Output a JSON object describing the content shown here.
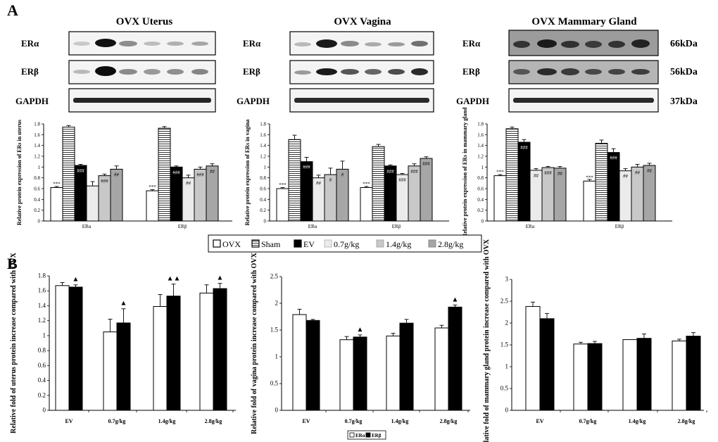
{
  "panel_labels": [
    "A",
    "B"
  ],
  "blots": [
    {
      "title": "OVX Uterus",
      "labels": [
        "ERα",
        "ERβ",
        "GAPDH"
      ]
    },
    {
      "title": "OVX Vagina",
      "labels": [
        "ERα",
        "ERβ",
        "GAPDH"
      ]
    },
    {
      "title": "OVX Mammary Gland",
      "labels": [
        "ERα",
        "ERβ",
        "GAPDH"
      ]
    }
  ],
  "kda_labels": [
    "66kDa",
    "56kDa",
    "37kDa"
  ],
  "legend_A": [
    "OVX",
    "Sham",
    "EV",
    "0.7g/kg",
    "1.4g/kg",
    "2.8g/kg"
  ],
  "legend_B": [
    "ERα",
    "ERβ"
  ],
  "colors": {
    "OVX": "#ffffff",
    "Sham": "#ffffff",
    "EV": "#000000",
    "0.7g/kg": "#ebebeb",
    "1.4g/kg": "#c8c8c8",
    "2.8g/kg": "#a6a6a6",
    "ERa": "#ffffff",
    "ERb": "#000000"
  },
  "chart_data": [
    {
      "type": "bar",
      "panel": "A",
      "ylabel": "Relative protein expression of ERs in uterus",
      "ylim": [
        0,
        1.8
      ],
      "yticks": [
        "0",
        "0.2",
        "0.4",
        "0.6",
        "0.8",
        "1",
        "1.2",
        "1.4",
        "1.6",
        "1.8"
      ],
      "categories": [
        "ERα",
        "ERβ"
      ],
      "series": [
        {
          "name": "OVX",
          "values": [
            0.62,
            0.56
          ],
          "errors": [
            0.02,
            0.02
          ],
          "marks": [
            "***",
            "***"
          ]
        },
        {
          "name": "Sham",
          "values": [
            1.74,
            1.72
          ],
          "errors": [
            0.03,
            0.03
          ],
          "marks": [
            "",
            ""
          ]
        },
        {
          "name": "EV",
          "values": [
            1.03,
            1.0
          ],
          "errors": [
            0.02,
            0.02
          ],
          "marks": [
            "###",
            "###"
          ]
        },
        {
          "name": "0.7g/kg",
          "values": [
            0.65,
            0.8
          ],
          "errors": [
            0.08,
            0.05
          ],
          "marks": [
            "",
            "##"
          ]
        },
        {
          "name": "1.4g/kg",
          "values": [
            0.84,
            0.96
          ],
          "errors": [
            0.03,
            0.04
          ],
          "marks": [
            "###",
            "###"
          ]
        },
        {
          "name": "2.8g/kg",
          "values": [
            0.96,
            1.02
          ],
          "errors": [
            0.06,
            0.04
          ],
          "marks": [
            "##",
            "##"
          ]
        }
      ]
    },
    {
      "type": "bar",
      "panel": "A",
      "ylabel": "Relative protein expression of ERs in vagina",
      "ylim": [
        0,
        1.8
      ],
      "yticks": [
        "0",
        "0.2",
        "0.4",
        "0.6",
        "0.8",
        "1",
        "1.2",
        "1.4",
        "1.6",
        "1.8"
      ],
      "categories": [
        "ERα",
        "ERβ"
      ],
      "series": [
        {
          "name": "OVX",
          "values": [
            0.6,
            0.62
          ],
          "errors": [
            0.02,
            0.02
          ],
          "marks": [
            "***",
            "***"
          ]
        },
        {
          "name": "Sham",
          "values": [
            1.51,
            1.38
          ],
          "errors": [
            0.08,
            0.04
          ],
          "marks": [
            "",
            ""
          ]
        },
        {
          "name": "EV",
          "values": [
            1.1,
            1.02
          ],
          "errors": [
            0.08,
            0.02
          ],
          "marks": [
            "###",
            "###"
          ]
        },
        {
          "name": "0.7g/kg",
          "values": [
            0.8,
            0.86
          ],
          "errors": [
            0.05,
            0.02
          ],
          "marks": [
            "##",
            "###"
          ]
        },
        {
          "name": "1.4g/kg",
          "values": [
            0.86,
            1.02
          ],
          "errors": [
            0.12,
            0.04
          ],
          "marks": [
            "#",
            "###"
          ]
        },
        {
          "name": "2.8g/kg",
          "values": [
            0.96,
            1.16
          ],
          "errors": [
            0.15,
            0.03
          ],
          "marks": [
            "#",
            "###"
          ]
        }
      ]
    },
    {
      "type": "bar",
      "panel": "A",
      "ylabel": "Relative protein expression of ERs in mammary gland",
      "ylim": [
        0,
        1.8
      ],
      "yticks": [
        "0",
        "0.2",
        "0.4",
        "0.6",
        "0.8",
        "1",
        "1.2",
        "1.4",
        "1.6",
        "1.8"
      ],
      "categories": [
        "ERα",
        "ERβ"
      ],
      "series": [
        {
          "name": "OVX",
          "values": [
            0.84,
            0.74
          ],
          "errors": [
            0.02,
            0.03
          ],
          "marks": [
            "***",
            "***"
          ]
        },
        {
          "name": "Sham",
          "values": [
            1.71,
            1.44
          ],
          "errors": [
            0.03,
            0.06
          ],
          "marks": [
            "",
            ""
          ]
        },
        {
          "name": "EV",
          "values": [
            1.46,
            1.27
          ],
          "errors": [
            0.05,
            0.07
          ],
          "marks": [
            "###",
            "###"
          ]
        },
        {
          "name": "0.7g/kg",
          "values": [
            0.94,
            0.93
          ],
          "errors": [
            0.03,
            0.04
          ],
          "marks": [
            "##",
            "##"
          ]
        },
        {
          "name": "1.4g/kg",
          "values": [
            0.99,
            1.0
          ],
          "errors": [
            0.02,
            0.05
          ],
          "marks": [
            "###",
            "##"
          ]
        },
        {
          "name": "2.8g/kg",
          "values": [
            0.98,
            1.03
          ],
          "errors": [
            0.03,
            0.04
          ],
          "marks": [
            "##",
            "##"
          ]
        }
      ]
    },
    {
      "type": "bar",
      "panel": "B",
      "ylabel": "Relative fold of uterus protein increase compared with OVX",
      "ylim": [
        0,
        1.8
      ],
      "yticks": [
        "0",
        "0.2",
        "0.4",
        "0.6",
        "0.8",
        "1",
        "1.2",
        "1.4",
        "1.6",
        "1.8"
      ],
      "categories": [
        "EV",
        "0.7g/kg",
        "1.4g/kg",
        "2.8g/kg"
      ],
      "series": [
        {
          "name": "ERα",
          "values": [
            1.67,
            1.05,
            1.39,
            1.57
          ],
          "errors": [
            0.04,
            0.17,
            0.16,
            0.11
          ],
          "marks": [
            "",
            "",
            "",
            ""
          ]
        },
        {
          "name": "ERβ",
          "values": [
            1.65,
            1.17,
            1.53,
            1.63
          ],
          "errors": [
            0.03,
            0.19,
            0.16,
            0.07
          ],
          "marks": [
            "▲",
            "▲",
            "▲▲",
            "▲"
          ]
        }
      ]
    },
    {
      "type": "bar",
      "panel": "B",
      "ylabel": "Relative fold of vagina protein increase compared with OVX",
      "ylim": [
        0,
        2.5
      ],
      "yticks": [
        "0",
        "0.5",
        "1",
        "1.5",
        "2",
        "2.5"
      ],
      "categories": [
        "EV",
        "0.7g/kg",
        "1.4g/kg",
        "2.8g/kg"
      ],
      "series": [
        {
          "name": "ERα",
          "values": [
            1.79,
            1.32,
            1.39,
            1.54
          ],
          "errors": [
            0.1,
            0.06,
            0.05,
            0.05
          ],
          "marks": [
            "",
            "",
            "",
            ""
          ]
        },
        {
          "name": "ERβ",
          "values": [
            1.68,
            1.37,
            1.63,
            1.93
          ],
          "errors": [
            0.02,
            0.04,
            0.07,
            0.04
          ],
          "marks": [
            "",
            "▲",
            "",
            "▲"
          ]
        }
      ]
    },
    {
      "type": "bar",
      "panel": "B",
      "ylabel": "Relative fold of mammary gland protein increase compared with OVX",
      "ylim": [
        0,
        3
      ],
      "yticks": [
        "0",
        "0.5",
        "1",
        "1.5",
        "2",
        "2.5",
        "3"
      ],
      "categories": [
        "EV",
        "0.7g/kg",
        "1.4g/kg",
        "2.8g/kg"
      ],
      "series": [
        {
          "name": "ERα",
          "values": [
            2.38,
            1.52,
            1.62,
            1.59
          ],
          "errors": [
            0.1,
            0.04,
            0.0,
            0.04
          ],
          "marks": [
            "",
            "",
            "",
            ""
          ]
        },
        {
          "name": "ERβ",
          "values": [
            2.1,
            1.53,
            1.65,
            1.7
          ],
          "errors": [
            0.12,
            0.05,
            0.1,
            0.08
          ],
          "marks": [
            "",
            "",
            "",
            ""
          ]
        }
      ]
    }
  ]
}
